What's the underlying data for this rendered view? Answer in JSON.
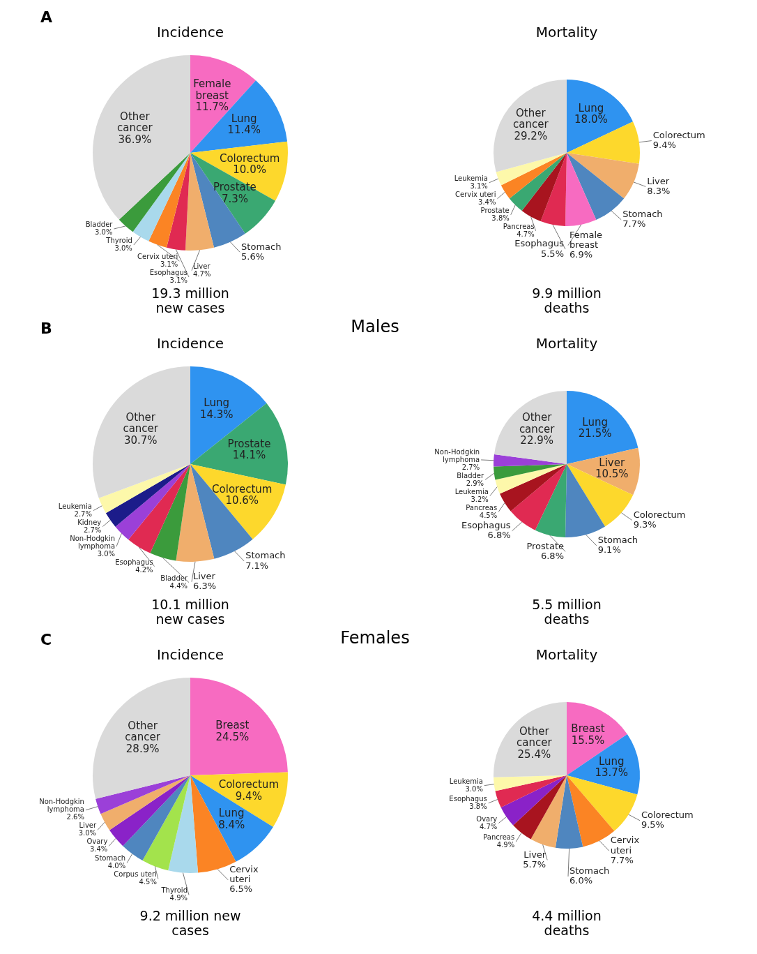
{
  "chart_data": [
    {
      "type": "pie",
      "title": "Incidence",
      "subtitle": "19.3 million new cases",
      "annotations": [
        "A"
      ],
      "categories": [
        "Female breast",
        "Lung",
        "Colorectum",
        "Prostate",
        "Stomach",
        "Liver",
        "Esophagus",
        "Cervix uteri",
        "Thyroid",
        "Bladder",
        "Other cancer"
      ],
      "values": [
        11.7,
        11.4,
        10.0,
        7.3,
        5.6,
        4.7,
        3.1,
        3.1,
        3.0,
        3.0,
        36.9
      ],
      "value_labels": [
        "11.7%",
        "11.4%",
        "10.0%",
        "7.3%",
        "5.6%",
        "4.7%",
        "3.1%",
        "3.1%",
        "3.0%",
        "3.0%",
        "36.9%"
      ],
      "colors": [
        "#f76bc1",
        "#2f93f0",
        "#fdd82c",
        "#3aa872",
        "#4f86bf",
        "#f0ae6c",
        "#e02a52",
        "#fb8424",
        "#a9d9ec",
        "#3b9b3c",
        "#dadada"
      ]
    },
    {
      "type": "pie",
      "title": "Mortality",
      "subtitle": "9.9 million deaths",
      "categories": [
        "Lung",
        "Colorectum",
        "Liver",
        "Stomach",
        "Female breast",
        "Esophagus",
        "Pancreas",
        "Prostate",
        "Cervix uteri",
        "Leukemia",
        "Other cancer"
      ],
      "values": [
        18.0,
        9.4,
        8.3,
        7.7,
        6.9,
        5.5,
        4.7,
        3.8,
        3.4,
        3.1,
        29.2
      ],
      "value_labels": [
        "18.0%",
        "9.4%",
        "8.3%",
        "7.7%",
        "6.9%",
        "5.5%",
        "4.7%",
        "3.8%",
        "3.4%",
        "3.1%",
        "29.2%"
      ],
      "colors": [
        "#2f93f0",
        "#fdd82c",
        "#f0ae6c",
        "#4f86bf",
        "#f76bc1",
        "#e02a52",
        "#a8141f",
        "#3aa872",
        "#fb8424",
        "#fdf8aa",
        "#dadada"
      ]
    },
    {
      "type": "pie",
      "title": "Incidence",
      "subtitle": "10.1 million new cases",
      "annotations": [
        "B",
        "Males"
      ],
      "categories": [
        "Lung",
        "Prostate",
        "Colorectum",
        "Stomach",
        "Liver",
        "Bladder",
        "Esophagus",
        "Non-Hodgkin lymphoma",
        "Kidney",
        "Leukemia",
        "Other cancer"
      ],
      "values": [
        14.3,
        14.1,
        10.6,
        7.1,
        6.3,
        4.4,
        4.2,
        3.0,
        2.7,
        2.7,
        30.7
      ],
      "value_labels": [
        "14.3%",
        "14.1%",
        "10.6%",
        "7.1%",
        "6.3%",
        "4.4%",
        "4.2%",
        "3.0%",
        "2.7%",
        "2.7%",
        "30.7%"
      ],
      "colors": [
        "#2f93f0",
        "#3aa872",
        "#fdd82c",
        "#4f86bf",
        "#f0ae6c",
        "#3b9b3c",
        "#e02a52",
        "#9b40d8",
        "#1c1c8a",
        "#fdf8aa",
        "#dadada"
      ]
    },
    {
      "type": "pie",
      "title": "Mortality",
      "subtitle": "5.5 million deaths",
      "categories": [
        "Lung",
        "Liver",
        "Colorectum",
        "Stomach",
        "Prostate",
        "Esophagus",
        "Pancreas",
        "Leukemia",
        "Bladder",
        "Non-Hodgkin lymphoma",
        "Other cancer"
      ],
      "values": [
        21.5,
        10.5,
        9.3,
        9.1,
        6.8,
        6.8,
        4.5,
        3.2,
        2.9,
        2.7,
        22.9
      ],
      "value_labels": [
        "21.5%",
        "10.5%",
        "9.3%",
        "9.1%",
        "6.8%",
        "6.8%",
        "4.5%",
        "3.2%",
        "2.9%",
        "2.7%",
        "22.9%"
      ],
      "colors": [
        "#2f93f0",
        "#f0ae6c",
        "#fdd82c",
        "#4f86bf",
        "#3aa872",
        "#e02a52",
        "#a8141f",
        "#fdf8aa",
        "#3b9b3c",
        "#9b40d8",
        "#dadada"
      ]
    },
    {
      "type": "pie",
      "title": "Incidence",
      "subtitle": "9.2 million new cases",
      "annotations": [
        "C",
        "Females"
      ],
      "categories": [
        "Breast",
        "Colorectum",
        "Lung",
        "Cervix uteri",
        "Thyroid",
        "Corpus uteri",
        "Stomach",
        "Ovary",
        "Liver",
        "Non-Hodgkin lymphoma",
        "Other cancer"
      ],
      "values": [
        24.5,
        9.4,
        8.4,
        6.5,
        4.9,
        4.5,
        4.0,
        3.4,
        3.0,
        2.6,
        28.9
      ],
      "value_labels": [
        "24.5%",
        "9.4%",
        "8.4%",
        "6.5%",
        "4.9%",
        "4.5%",
        "4.0%",
        "3.4%",
        "3.0%",
        "2.6%",
        "28.9%"
      ],
      "colors": [
        "#f76bc1",
        "#fdd82c",
        "#2f93f0",
        "#fb8424",
        "#a9d9ec",
        "#a3e34c",
        "#4f86bf",
        "#8a22c8",
        "#f0ae6c",
        "#9b40d8",
        "#dadada"
      ]
    },
    {
      "type": "pie",
      "title": "Mortality",
      "subtitle": "4.4 million deaths",
      "categories": [
        "Breast",
        "Lung",
        "Colorectum",
        "Cervix uteri",
        "Stomach",
        "Liver",
        "Pancreas",
        "Ovary",
        "Esophagus",
        "Leukemia",
        "Other cancer"
      ],
      "values": [
        15.5,
        13.7,
        9.5,
        7.7,
        6.0,
        5.7,
        4.9,
        4.7,
        3.8,
        3.0,
        25.4
      ],
      "value_labels": [
        "15.5%",
        "13.7%",
        "9.5%",
        "7.7%",
        "6.0%",
        "5.7%",
        "4.9%",
        "4.7%",
        "3.8%",
        "3.0%",
        "25.4%"
      ],
      "colors": [
        "#f76bc1",
        "#2f93f0",
        "#fdd82c",
        "#fb8424",
        "#4f86bf",
        "#f0ae6c",
        "#a8141f",
        "#8a22c8",
        "#e02a52",
        "#fdf8aa",
        "#dadada"
      ]
    }
  ]
}
